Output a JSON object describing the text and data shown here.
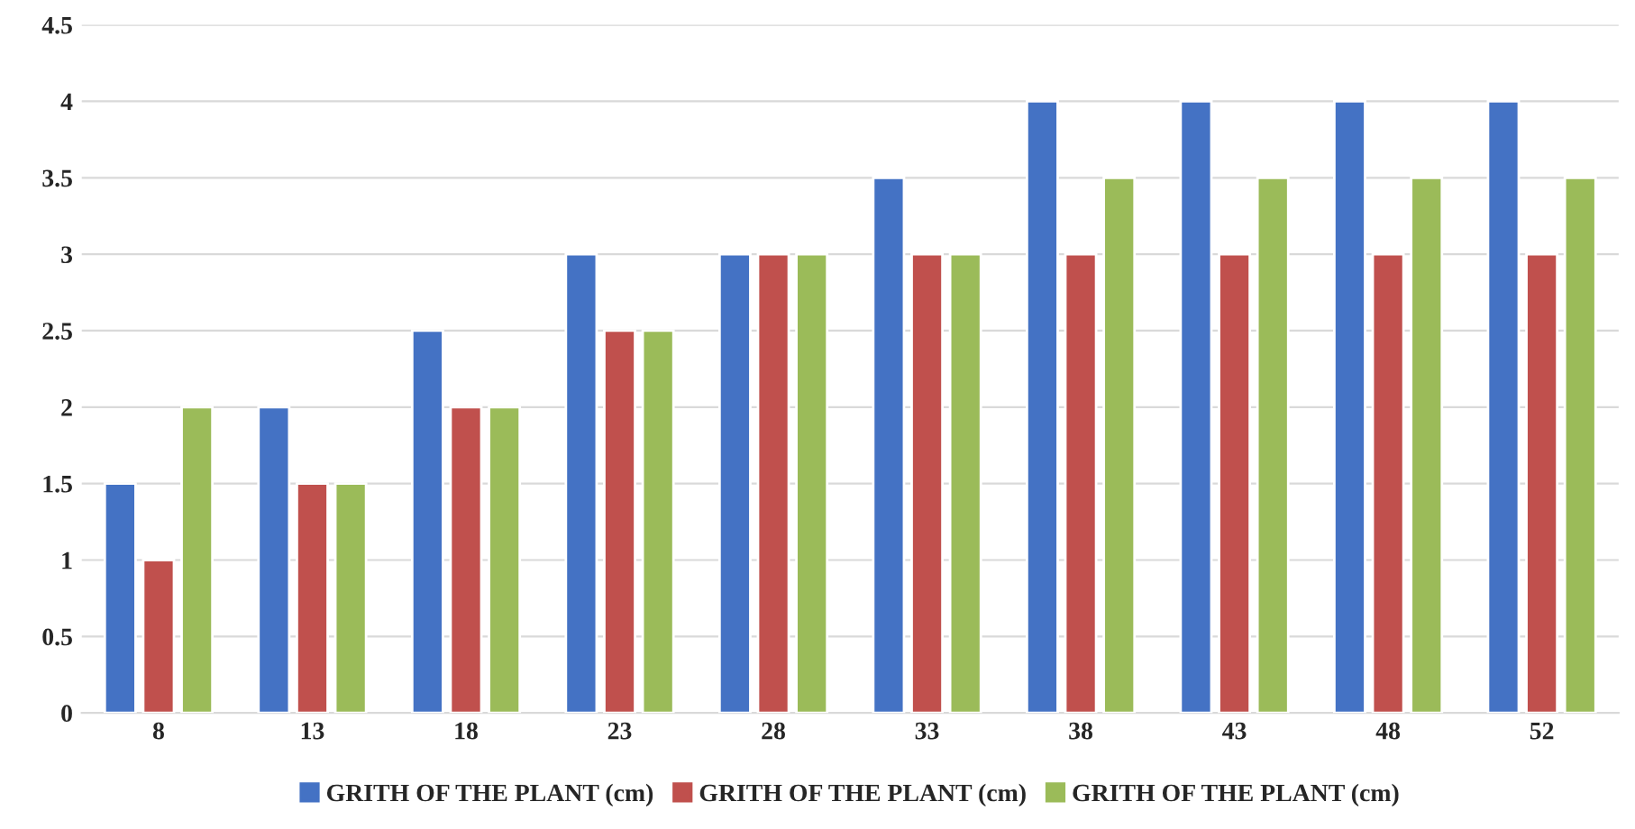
{
  "chart_data": {
    "type": "bar",
    "categories": [
      "8",
      "13",
      "18",
      "23",
      "28",
      "33",
      "38",
      "43",
      "48",
      "52"
    ],
    "series": [
      {
        "name": "GRITH OF THE PLANT (cm)",
        "color": "#4472c4",
        "values": [
          1.5,
          2,
          2.5,
          3,
          3,
          3.5,
          4,
          4,
          4,
          4
        ]
      },
      {
        "name": "GRITH OF THE PLANT (cm)",
        "color": "#c0504d",
        "values": [
          1,
          1.5,
          2,
          2.5,
          3,
          3,
          3,
          3,
          3,
          3
        ]
      },
      {
        "name": "GRITH OF THE PLANT (cm)",
        "color": "#9bbb59",
        "values": [
          2,
          1.5,
          2,
          2.5,
          3,
          3,
          3.5,
          3.5,
          3.5,
          3.5
        ]
      }
    ],
    "ylim": [
      0,
      4.5
    ],
    "yticks": [
      0,
      0.5,
      1,
      1.5,
      2,
      2.5,
      3,
      3.5,
      4,
      4.5
    ],
    "grid": "y",
    "legend": "bottom"
  }
}
